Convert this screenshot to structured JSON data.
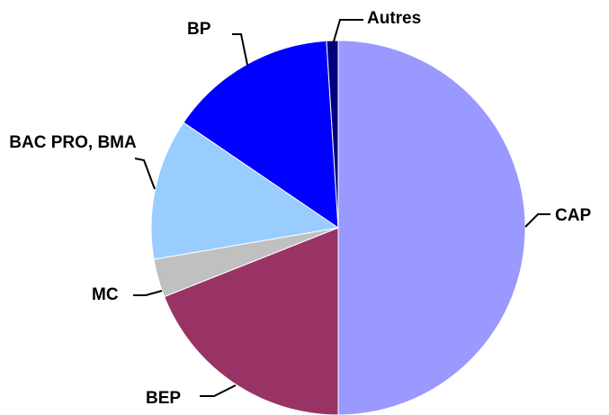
{
  "chart_data": {
    "type": "pie",
    "categories": [
      "CAP",
      "BEP",
      "MC",
      "BAC PRO, BMA",
      "BP",
      "Autres"
    ],
    "values": [
      50,
      19,
      3.3,
      12.2,
      14.5,
      1
    ],
    "colors": [
      "#9999ff",
      "#993366",
      "#c0c0c0",
      "#99ccff",
      "#0000ff",
      "#000080"
    ]
  }
}
